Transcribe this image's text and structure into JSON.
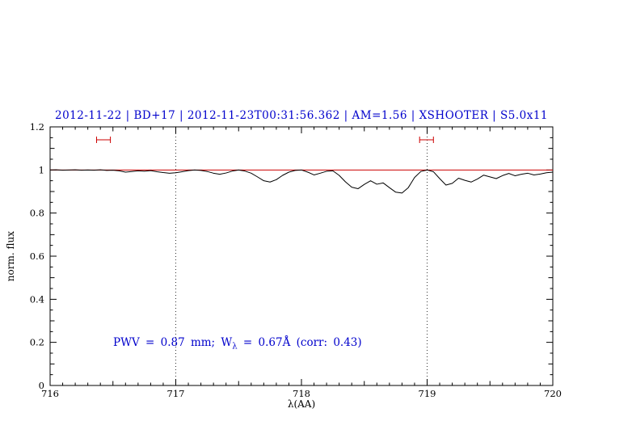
{
  "chart_data": {
    "type": "line",
    "title": "2012-11-22 | BD+17 | 2012-11-23T00:31:56.362 | AM=1.56 | XSHOOTER | S5.0x11",
    "xlabel": "λ(AA)",
    "ylabel": "norm. flux",
    "xlim": [
      716,
      720
    ],
    "ylim": [
      0,
      1.2
    ],
    "grid": false,
    "legend": "none",
    "x_ticks": [
      716,
      717,
      718,
      719,
      720
    ],
    "x_tick_labels": [
      "716",
      "717",
      "718",
      "719",
      "720"
    ],
    "y_ticks": [
      0,
      0.2,
      0.4,
      0.6,
      0.8,
      1,
      1.2
    ],
    "y_tick_labels": [
      "0",
      "0.2",
      "0.4",
      "0.6",
      "0.8",
      "1",
      "1.2"
    ],
    "vlines": [
      717,
      719
    ],
    "colors": {
      "title": "#0000cc",
      "annotation": "#0000cc",
      "spectrum": "#000000",
      "continuum": "#cc0000",
      "markers": "#cc0000",
      "grid": "#000000"
    },
    "region_markers": [
      {
        "x0": 716.37,
        "x1": 716.48,
        "y": 1.14
      },
      {
        "x0": 718.94,
        "x1": 719.05,
        "y": 1.14
      }
    ],
    "annotation": {
      "pre": "PWV = 0.87 mm; W",
      "sub": "λ",
      "post": " = 0.67Å (corr: 0.43)",
      "x": 716.5,
      "y": 0.19
    },
    "series": [
      {
        "name": "spectrum",
        "x": [
          716.0,
          716.05,
          716.1,
          716.15,
          716.2,
          716.25,
          716.3,
          716.35,
          716.4,
          716.45,
          716.5,
          716.55,
          716.6,
          716.65,
          716.7,
          716.75,
          716.8,
          716.85,
          716.9,
          716.95,
          717.0,
          717.05,
          717.1,
          717.15,
          717.2,
          717.25,
          717.3,
          717.35,
          717.4,
          717.45,
          717.5,
          717.55,
          717.6,
          717.65,
          717.7,
          717.75,
          717.8,
          717.85,
          717.9,
          717.95,
          718.0,
          718.05,
          718.1,
          718.15,
          718.2,
          718.25,
          718.3,
          718.35,
          718.4,
          718.45,
          718.5,
          718.55,
          718.6,
          718.65,
          718.7,
          718.75,
          718.8,
          718.85,
          718.9,
          718.95,
          719.0,
          719.05,
          719.1,
          719.15,
          719.2,
          719.25,
          719.3,
          719.35,
          719.4,
          719.45,
          719.5,
          719.55,
          719.6,
          719.65,
          719.7,
          719.75,
          719.8,
          719.85,
          719.9,
          719.95,
          720.0
        ],
        "y": [
          1.0,
          1.001,
          0.999,
          1.0,
          1.001,
          0.999,
          1.0,
          0.999,
          1.001,
          0.998,
          0.999,
          0.996,
          0.99,
          0.993,
          0.996,
          0.994,
          0.997,
          0.992,
          0.988,
          0.985,
          0.987,
          0.992,
          0.997,
          1.0,
          0.998,
          0.993,
          0.985,
          0.98,
          0.986,
          0.995,
          1.0,
          0.995,
          0.985,
          0.968,
          0.95,
          0.944,
          0.955,
          0.975,
          0.99,
          0.998,
          1.0,
          0.99,
          0.977,
          0.985,
          0.994,
          0.996,
          0.975,
          0.945,
          0.92,
          0.913,
          0.933,
          0.95,
          0.934,
          0.94,
          0.918,
          0.897,
          0.893,
          0.918,
          0.965,
          0.993,
          1.0,
          0.992,
          0.96,
          0.93,
          0.938,
          0.962,
          0.952,
          0.944,
          0.958,
          0.976,
          0.968,
          0.96,
          0.974,
          0.984,
          0.973,
          0.98,
          0.985,
          0.977,
          0.981,
          0.987,
          0.99
        ]
      },
      {
        "name": "continuum",
        "x": [
          716,
          720
        ],
        "y": [
          1,
          1
        ]
      }
    ]
  }
}
